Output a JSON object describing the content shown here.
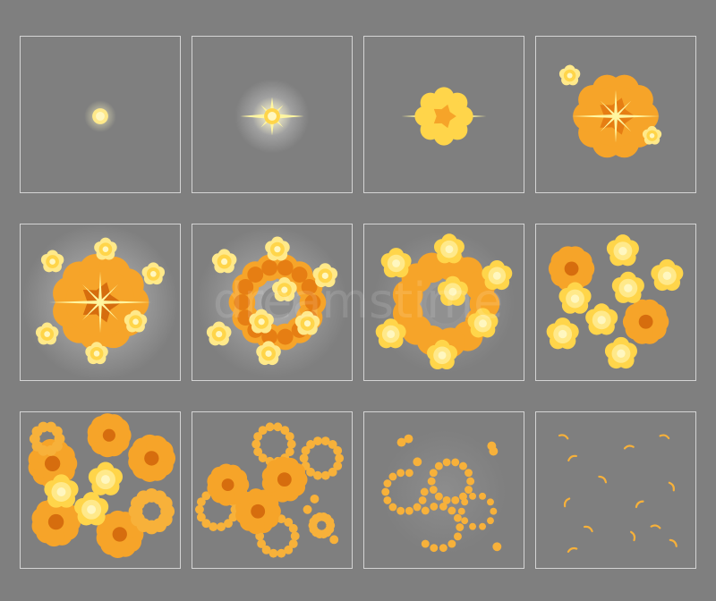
{
  "sprite_sheet": {
    "background": "#7f7f7f",
    "frame_border": "#d4d4d4",
    "palette": {
      "glow": "#fff9c4",
      "spark": "#fff6a0",
      "yellow": "#ffd54a",
      "yellow_light": "#ffe98a",
      "yellow_center": "#fff7c0",
      "orange": "#f6a429",
      "orange_dark": "#e67e13",
      "orange_core": "#d66d0e",
      "ring": "#f7b13a",
      "smoke": "#b7b7b7"
    },
    "frames": [
      {
        "index": 1,
        "stage": "spark"
      },
      {
        "index": 2,
        "stage": "flash"
      },
      {
        "index": 3,
        "stage": "burst"
      },
      {
        "index": 4,
        "stage": "fireball"
      },
      {
        "index": 5,
        "stage": "expansion"
      },
      {
        "index": 6,
        "stage": "ring-forming"
      },
      {
        "index": 7,
        "stage": "ring-breaking"
      },
      {
        "index": 8,
        "stage": "cloud-clusters"
      },
      {
        "index": 9,
        "stage": "orange-rings"
      },
      {
        "index": 10,
        "stage": "dissipating-rings"
      },
      {
        "index": 11,
        "stage": "thin-rings"
      },
      {
        "index": 12,
        "stage": "embers"
      }
    ],
    "watermark": "dreamstime"
  }
}
